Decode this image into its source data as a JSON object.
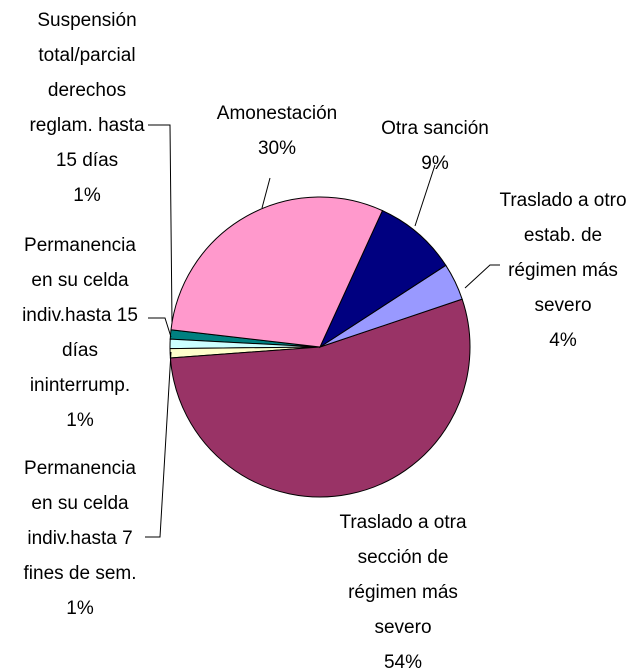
{
  "chart_data": {
    "type": "pie",
    "categories": [
      "Amonestación",
      "Otra sanción",
      "Traslado a otro\nestab. de\nrégimen más\nsevero",
      "Traslado a otra\nsección de\nrégimen más\nsevero",
      "Permanencia\nen su celda\nindiv.hasta 7\nfines de sem.",
      "Permanencia\nen su celda\nindiv.hasta 15\ndías\nininterrump.",
      "Suspensión\ntotal/parcial\nderechos\nreglam. hasta\n15 días"
    ],
    "values": [
      30,
      9,
      4,
      54,
      1,
      1,
      1
    ],
    "value_labels": [
      "30%",
      "9%",
      "4%",
      "54%",
      "1%",
      "1%",
      "1%"
    ],
    "colors": [
      "#ff99cc",
      "#000080",
      "#9999ff",
      "#993366",
      "#ffffcc",
      "#ccffff",
      "#008080"
    ]
  }
}
